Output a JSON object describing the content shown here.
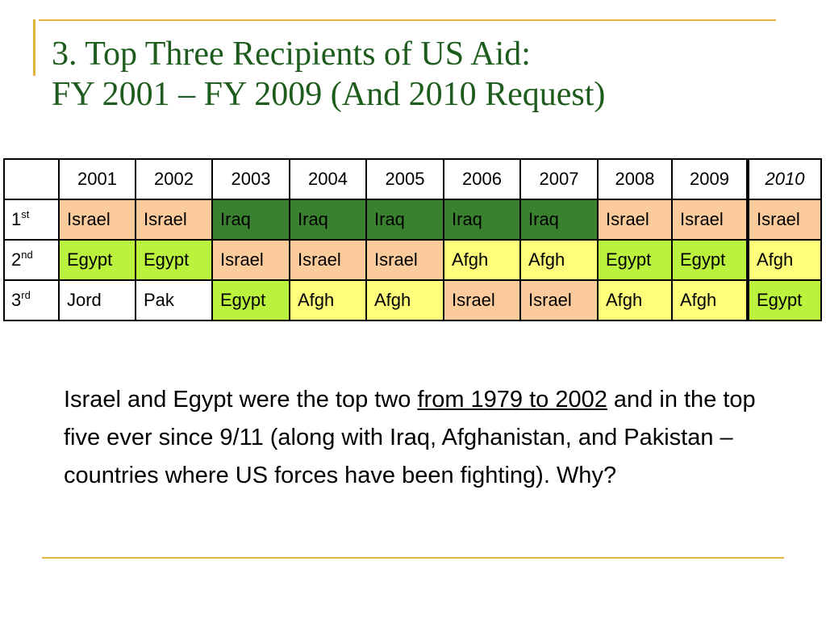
{
  "title": {
    "line1": "3. Top Three Recipients of US Aid:",
    "line2": "FY 2001 – FY 2009 (And 2010 Request)"
  },
  "table": {
    "years": [
      "2001",
      "2002",
      "2003",
      "2004",
      "2005",
      "2006",
      "2007",
      "2008",
      "2009",
      "2010"
    ],
    "rows": [
      {
        "rank_num": "1",
        "rank_suffix": "st",
        "cells": [
          "Israel",
          "Israel",
          "Iraq",
          "Iraq",
          "Iraq",
          "Iraq",
          "Iraq",
          "Israel",
          "Israel",
          "Israel"
        ]
      },
      {
        "rank_num": "2",
        "rank_suffix": "nd",
        "cells": [
          "Egypt",
          "Egypt",
          "Israel",
          "Israel",
          "Israel",
          "Afgh",
          "Afgh",
          "Egypt",
          "Egypt",
          "Afgh"
        ]
      },
      {
        "rank_num": "3",
        "rank_suffix": "rd",
        "cells": [
          "Jord",
          "Pak",
          "Egypt",
          "Afgh",
          "Afgh",
          "Israel",
          "Israel",
          "Afgh",
          "Afgh",
          "Egypt"
        ]
      }
    ],
    "colors": {
      "Israel": "#FCCB9B",
      "Iraq": "#39812F",
      "Egypt": "#BAF23E",
      "Afgh": "#FEFE7A",
      "Jord": "#FFFFFF",
      "Pak": "#FFFFFF"
    }
  },
  "body": {
    "part1": "Israel and Egypt were the top two ",
    "link": "from 1979 to 2002",
    "part2": " and in the top five ever since 9/11 (along with Iraq, Afghanistan, and Pakistan – countries where US forces have been fighting).  Why?"
  },
  "colors": {
    "title": "#1E5C1E",
    "accent_line": "#E3B540"
  }
}
